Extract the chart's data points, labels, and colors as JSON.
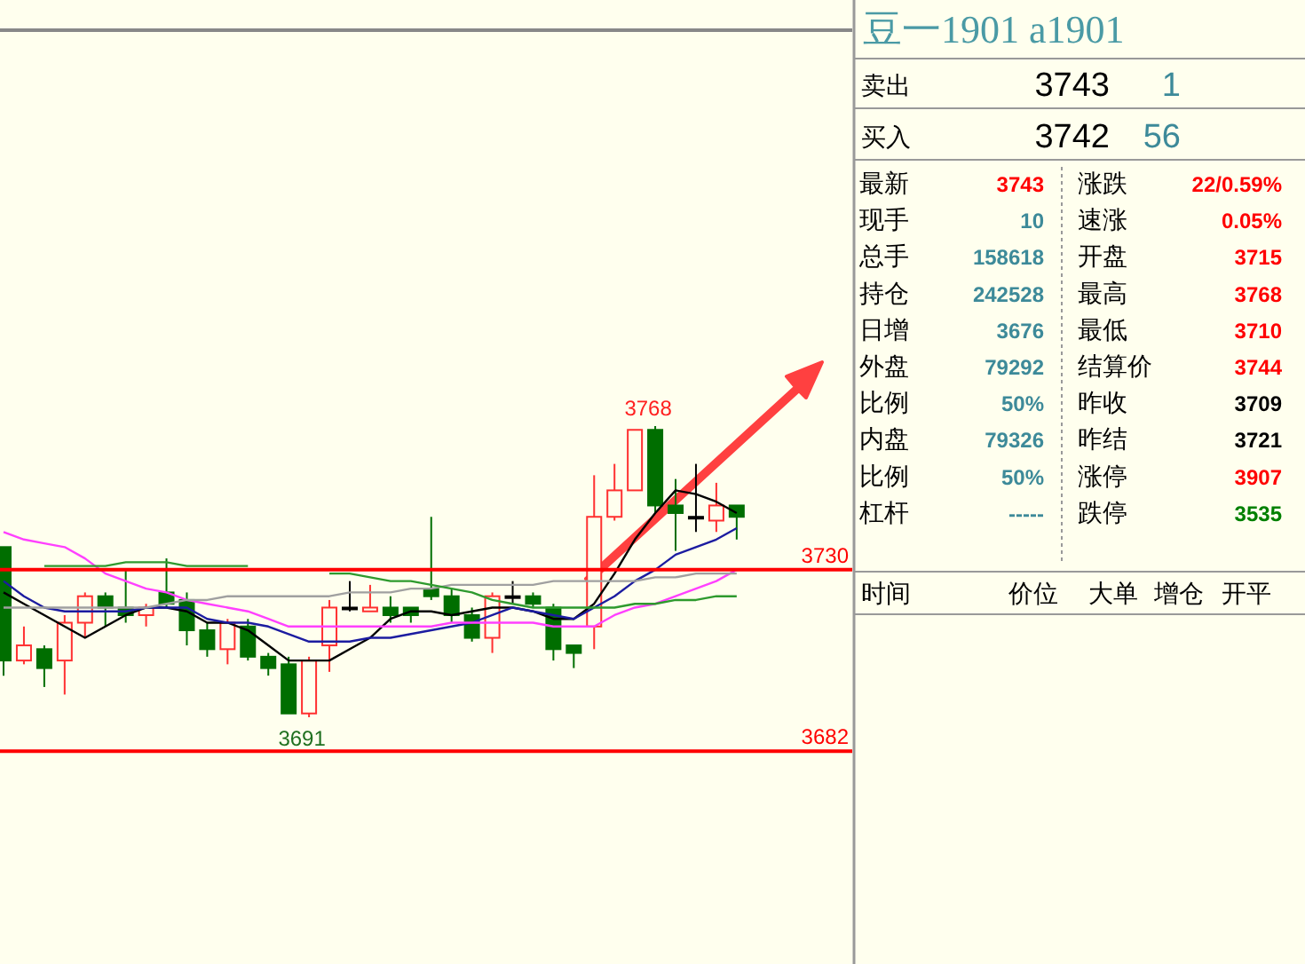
{
  "chart_data": [
    {
      "type": "candlestick",
      "categories": [
        null,
        null,
        null,
        null,
        null,
        null,
        null,
        null,
        null,
        null,
        null,
        null,
        null,
        null,
        null,
        null,
        null,
        null,
        null,
        null,
        null,
        null,
        null,
        null,
        null,
        null,
        null,
        null,
        null,
        null,
        null,
        null,
        null,
        null,
        null,
        null,
        null
      ],
      "ohlc": [
        [
          3736,
          3736,
          3702,
          3706
        ],
        [
          3706,
          3715,
          3705,
          3710
        ],
        [
          3709,
          3710,
          3699,
          3704
        ],
        [
          3706,
          3718,
          3697,
          3716
        ],
        [
          3716,
          3724,
          3712,
          3723
        ],
        [
          3723,
          3724,
          3715,
          3720
        ],
        [
          3720,
          3730,
          3716,
          3718
        ],
        [
          3718,
          3721,
          3715,
          3720
        ],
        [
          3724,
          3733,
          3720,
          3721
        ],
        [
          3722,
          3724,
          3710,
          3714
        ],
        [
          3714,
          3716,
          3707,
          3709
        ],
        [
          3709,
          3717,
          3705,
          3716
        ],
        [
          3715,
          3717,
          3706,
          3707
        ],
        [
          3707,
          3708,
          3702,
          3704
        ],
        [
          3705,
          3707,
          3692,
          3692
        ],
        [
          3692,
          3707,
          3691,
          3706
        ],
        [
          3710,
          3722,
          3703,
          3720
        ],
        [
          3720,
          3727,
          3719,
          3720
        ],
        [
          3719,
          3726,
          3719,
          3720
        ],
        [
          3720,
          3723,
          3716,
          3718
        ],
        [
          3720,
          3720,
          3716,
          3718
        ],
        [
          3725,
          3744,
          3722,
          3723
        ],
        [
          3723,
          3725,
          3716,
          3718
        ],
        [
          3718,
          3720,
          3711,
          3712
        ],
        [
          3712,
          3724,
          3708,
          3723
        ],
        [
          3723,
          3727,
          3721,
          3723
        ],
        [
          3723,
          3724,
          3720,
          3721
        ],
        [
          3720,
          3721,
          3706,
          3709
        ],
        [
          3710,
          3710,
          3704,
          3708
        ],
        [
          3715,
          3755,
          3709,
          3744
        ],
        [
          3744,
          3758,
          3743,
          3751
        ],
        [
          3751,
          3767,
          3751,
          3767
        ],
        [
          3767,
          3768,
          3745,
          3747
        ],
        [
          3747,
          3754,
          3735,
          3745
        ],
        [
          3744,
          3758,
          3740,
          3744
        ],
        [
          3743,
          3753,
          3740,
          3747
        ],
        [
          3747,
          3747,
          3738,
          3744
        ]
      ],
      "colors": [
        "#006e00",
        "#ff3030",
        "#006e00",
        "#ff3030",
        "#ff3030",
        "#006e00",
        "#006e00",
        "#ff3030",
        "#006e00",
        "#006e00",
        "#006e00",
        "#ff3030",
        "#006e00",
        "#006e00",
        "#006e00",
        "#ff3030",
        "#ff3030",
        "#000000",
        "#ff3030",
        "#006e00",
        "#006e00",
        "#006e00",
        "#006e00",
        "#006e00",
        "#ff3030",
        "#000000",
        "#006e00",
        "#006e00",
        "#006e00",
        "#ff3030",
        "#ff3030",
        "#ff3030",
        "#006e00",
        "#006e00",
        "#000000",
        "#ff3030",
        "#006e00"
      ],
      "series": [
        {
          "type": "line",
          "color": "#000000",
          "values": [
            3724,
            3721,
            3718,
            3715,
            3712,
            3715,
            3718,
            3720,
            3720,
            3719,
            3716,
            3716,
            3714,
            3710,
            3706,
            3706,
            3706,
            3709,
            3712,
            3717,
            3719,
            3719,
            3718,
            3719,
            3720,
            3720,
            3719,
            3717,
            3717,
            3721,
            3729,
            3738,
            3745,
            3751,
            3750,
            3748,
            3745
          ]
        },
        {
          "type": "line",
          "color": "#1c1ca0",
          "values": [
            3727,
            3723,
            3720,
            3719,
            3719,
            3719,
            3719,
            3720,
            3720,
            3720,
            3717,
            3716,
            3716,
            3715,
            3713,
            3711,
            3711,
            3711,
            3712,
            3712,
            3713,
            3714,
            3715,
            3716,
            3718,
            3720,
            3719,
            3718,
            3717,
            3720,
            3723,
            3727,
            3730,
            3734,
            3736,
            3738,
            3741
          ]
        },
        {
          "type": "line",
          "color": "#ff40ff",
          "values": [
            3740,
            3738,
            3737,
            3736,
            3733,
            3729,
            3727,
            3725,
            3724,
            3722,
            3721,
            3720,
            3719,
            3717,
            3715,
            3715,
            3715,
            3715,
            3715,
            3715,
            3715,
            3715,
            3716,
            3716,
            3716,
            3716,
            3716,
            3715,
            3715,
            3715,
            3718,
            3720,
            3721,
            3723,
            3725,
            3727,
            3730
          ]
        },
        {
          "type": "line",
          "color": "#a0a0a0",
          "values": [
            3720,
            3720,
            3720,
            3720,
            3720,
            3720,
            3720,
            3720,
            3721,
            3722,
            3722,
            3723,
            3723,
            3723,
            3723,
            3723,
            3723,
            3724,
            3724,
            3724,
            3725,
            3725,
            3726,
            3726,
            3726,
            3726,
            3726,
            3727,
            3727,
            3727,
            3727,
            3727,
            3728,
            3728,
            3729,
            3729,
            3729
          ]
        },
        {
          "type": "line",
          "color": "#2e9a2e",
          "values": [
            null,
            null,
            3731,
            3731,
            3731,
            3731,
            3732,
            3732,
            3732,
            3731,
            3731,
            3731,
            3731,
            null,
            null,
            null,
            3729,
            3729,
            3728,
            3727,
            3727,
            3726,
            3725,
            3724,
            3722,
            3721,
            3720,
            3720,
            3720,
            3720,
            3720,
            3721,
            3721,
            3722,
            3722,
            3723,
            3723
          ]
        }
      ],
      "ref_lines": [
        {
          "axis": "y",
          "value": 3730,
          "label": "3730",
          "color": "#ff0000"
        },
        {
          "axis": "y",
          "value": 3682,
          "label": "3682",
          "color": "#ff0000"
        }
      ],
      "annotations": [
        {
          "text": "3768",
          "y": 3768
        },
        {
          "text": "3691",
          "y": 3691
        }
      ]
    },
    {
      "type": "other",
      "title": "豆一1901  a1901",
      "annotations": [
        "卖出",
        "3743",
        "1",
        "买入",
        "3742",
        "56",
        "最新",
        "3743",
        "涨跌",
        "22/0.59%",
        "现手",
        "10",
        "速涨",
        "0.05%",
        "总手",
        "158618",
        "开盘",
        "3715",
        "持仓",
        "242528",
        "最高",
        "3768",
        "日增",
        "3676",
        "最低",
        "3710",
        "外盘",
        "79292",
        "结算价",
        "3744",
        "比例",
        "50%",
        "昨收",
        "3709",
        "内盘",
        "79326",
        "昨结",
        "3721",
        "比例",
        "50%",
        "涨停",
        "3907",
        "杠杆",
        "-----",
        "跌停",
        "3535",
        "时间",
        "价位",
        "大单",
        "增仓",
        "开平"
      ],
      "colors": [
        "#000000",
        "#000000",
        "#3d8a99",
        "#000000",
        "#000000",
        "#3d8a99",
        "#000000",
        "#ff0000",
        "#000000",
        "#ff0000",
        "#000000",
        "#3d8a99",
        "#000000",
        "#ff0000",
        "#000000",
        "#3d8a99",
        "#000000",
        "#ff0000",
        "#000000",
        "#3d8a99",
        "#000000",
        "#ff0000",
        "#000000",
        "#3d8a99",
        "#000000",
        "#ff0000",
        "#000000",
        "#3d8a99",
        "#000000",
        "#ff0000",
        "#000000",
        "#3d8a99",
        "#000000",
        "#000000",
        "#000000",
        "#3d8a99",
        "#000000",
        "#000000",
        "#000000",
        "#3d8a99",
        "#000000",
        "#ff0000",
        "#000000",
        "#3d8a99",
        "#000000",
        "#008000",
        "#000000",
        "#000000",
        "#000000",
        "#000000",
        "#000000"
      ]
    }
  ]
}
